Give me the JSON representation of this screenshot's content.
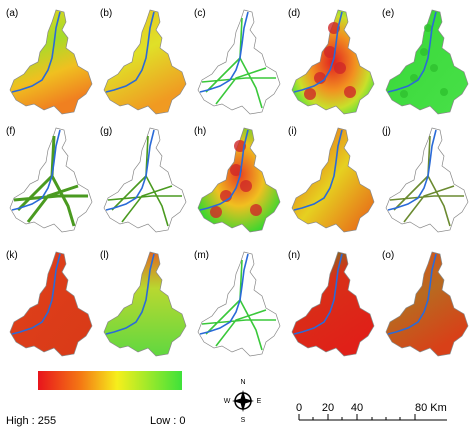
{
  "panels": [
    {
      "label": "(a)"
    },
    {
      "label": "(b)"
    },
    {
      "label": "(c)"
    },
    {
      "label": "(d)"
    },
    {
      "label": "(e)"
    },
    {
      "label": "(f)"
    },
    {
      "label": "(g)"
    },
    {
      "label": "(h)"
    },
    {
      "label": "(i)"
    },
    {
      "label": "(j)"
    },
    {
      "label": "(k)"
    },
    {
      "label": "(l)"
    },
    {
      "label": "(m)"
    },
    {
      "label": "(n)"
    },
    {
      "label": "(o)"
    }
  ],
  "legend": {
    "high": "High : 255",
    "low": "Low : 0"
  },
  "compass": {
    "n": "N",
    "e": "E",
    "s": "S",
    "w": "W"
  },
  "scale_bar": {
    "labels": [
      "0",
      "20",
      "40",
      "80 Km"
    ]
  }
}
